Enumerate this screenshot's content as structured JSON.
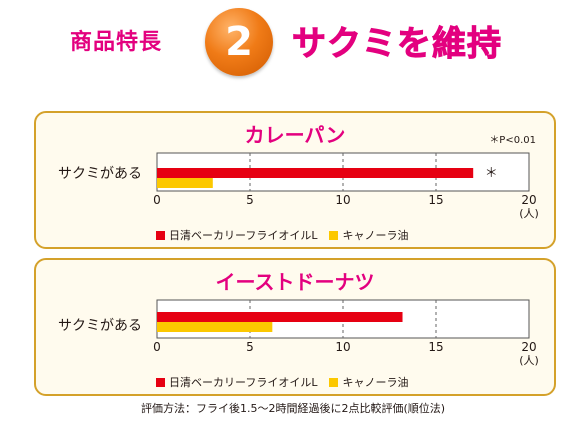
{
  "header": {
    "label": "商品特長",
    "number": "2",
    "headline": "サクミを維持"
  },
  "colors": {
    "series1": "#e60012",
    "series2": "#fcc800",
    "accent": "#e3007f",
    "border": "#d4a12a"
  },
  "chart_data": [
    {
      "type": "bar",
      "orientation": "horizontal",
      "title": "カレーパン",
      "note": "＊P<0.01",
      "categories": [
        "サクミがある"
      ],
      "series": [
        {
          "name": "日清ベーカリーフライオイルL",
          "values": [
            17
          ]
        },
        {
          "name": "キャノーラ油",
          "values": [
            3
          ]
        }
      ],
      "significance": "＊",
      "xlim": [
        0,
        20
      ],
      "xticks": [
        "0",
        "5",
        "10",
        "15",
        "20"
      ],
      "unit": "(人)",
      "grid": "dashed vertical",
      "legend": "bottom"
    },
    {
      "type": "bar",
      "orientation": "horizontal",
      "title": "イーストドーナツ",
      "categories": [
        "サクミがある"
      ],
      "series": [
        {
          "name": "日清ベーカリーフライオイルL",
          "values": [
            13.2
          ]
        },
        {
          "name": "キャノーラ油",
          "values": [
            6.2
          ]
        }
      ],
      "xlim": [
        0,
        20
      ],
      "xticks": [
        "0",
        "5",
        "10",
        "15",
        "20"
      ],
      "unit": "(人)",
      "grid": "dashed vertical",
      "legend": "bottom"
    }
  ],
  "footnote": "評価方法：フライ後1.5～2時間経過後に2点比較評価(順位法)"
}
